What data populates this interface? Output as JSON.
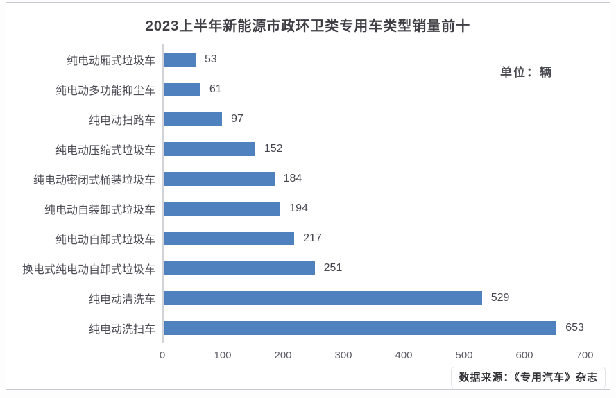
{
  "chart_data": {
    "type": "bar",
    "orientation": "horizontal",
    "title": "2023上半年新能源市政环卫类专用车类型销量前十",
    "unit_label": "单位：辆",
    "categories": [
      "纯电动厢式垃圾车",
      "纯电动多功能抑尘车",
      "纯电动扫路车",
      "纯电动压缩式垃圾车",
      "纯电动密闭式桶装垃圾车",
      "纯电动自装卸式垃圾车",
      "纯电动自卸式垃圾车",
      "换电式纯电动自卸式垃圾车",
      "纯电动清洗车",
      "纯电动洗扫车"
    ],
    "values": [
      53,
      61,
      97,
      152,
      184,
      194,
      217,
      251,
      529,
      653
    ],
    "xlim": [
      0,
      700
    ],
    "x_ticks": [
      0,
      100,
      200,
      300,
      400,
      500,
      600,
      700
    ],
    "bar_color": "#4e81bd",
    "grid": false,
    "data_labels": true,
    "legend": null,
    "source": "数据来源：《专用汽车》杂志"
  }
}
